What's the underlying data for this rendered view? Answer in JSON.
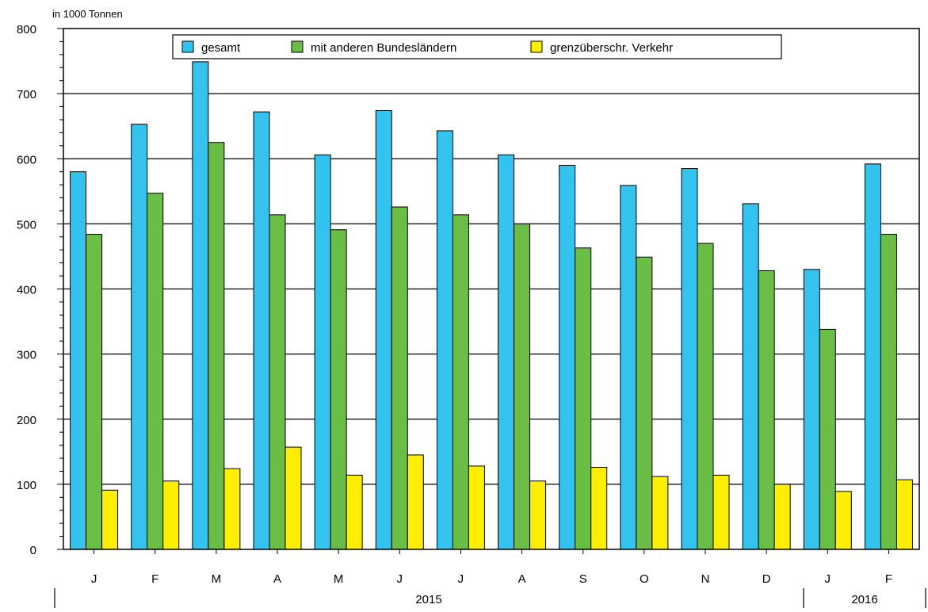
{
  "chart_data": {
    "type": "bar",
    "unit_label": "in 1000 Tonnen",
    "categories": [
      "J",
      "F",
      "M",
      "A",
      "M",
      "J",
      "J",
      "A",
      "S",
      "O",
      "N",
      "D",
      "J",
      "F"
    ],
    "year_groups": [
      {
        "label": "2015",
        "first_index": 0,
        "last_index": 11
      },
      {
        "label": "2016",
        "first_index": 12,
        "last_index": 13
      }
    ],
    "series": [
      {
        "name": "gesamt",
        "color": "#33c3ee",
        "values": [
          580,
          653,
          749,
          672,
          606,
          674,
          643,
          606,
          590,
          559,
          585,
          531,
          430,
          592
        ]
      },
      {
        "name": "mit anderen Bundesländern",
        "color": "#6abd45",
        "values": [
          484,
          547,
          625,
          514,
          491,
          526,
          514,
          500,
          463,
          449,
          470,
          428,
          338,
          484
        ]
      },
      {
        "name": "grenzüberschr. Verkehr",
        "color": "#ffee00",
        "values": [
          91,
          105,
          124,
          157,
          114,
          145,
          128,
          105,
          126,
          112,
          114,
          100,
          89,
          107
        ]
      }
    ],
    "ylim": [
      0,
      800
    ],
    "y_ticks": [
      0,
      100,
      200,
      300,
      400,
      500,
      600,
      700,
      800
    ],
    "grid": true,
    "legend": "top-center"
  }
}
